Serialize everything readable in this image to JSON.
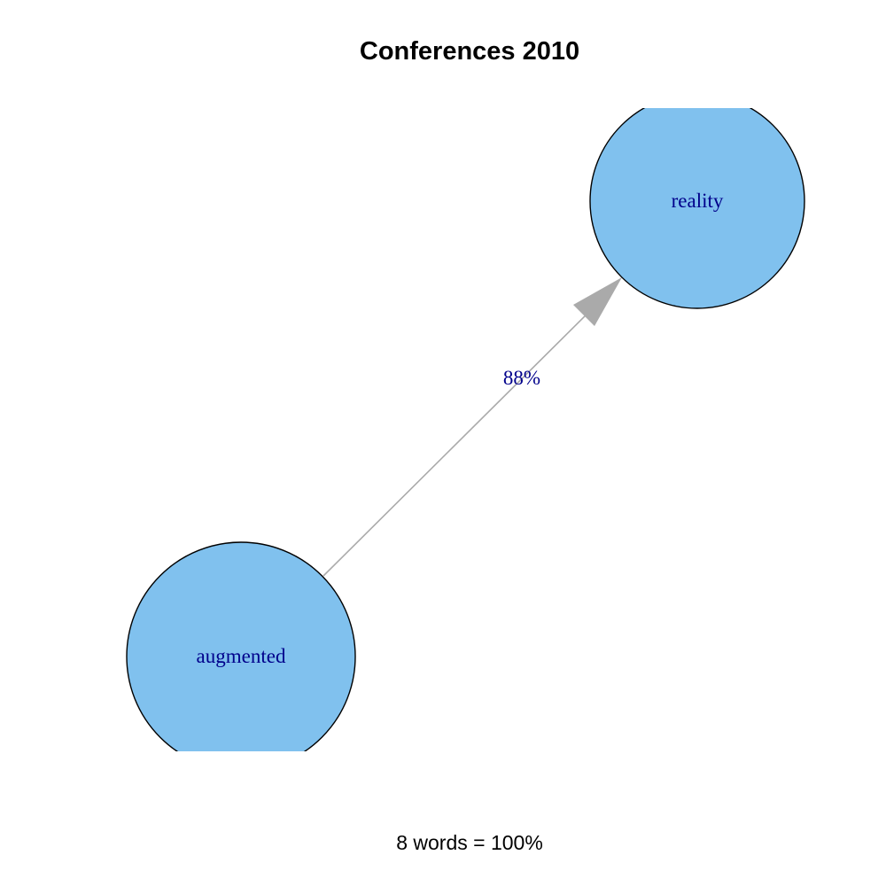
{
  "title": "Conferences 2010",
  "footer": "8 words = 100%",
  "colors": {
    "node_fill": "#80c1ee",
    "node_stroke": "#000000",
    "label": "#00008b",
    "edge": "#aaaaaa"
  },
  "nodes": [
    {
      "id": "augmented",
      "label": "augmented"
    },
    {
      "id": "reality",
      "label": "reality"
    }
  ],
  "edges": [
    {
      "from": "augmented",
      "to": "reality",
      "label": "88%",
      "directed": true
    }
  ]
}
